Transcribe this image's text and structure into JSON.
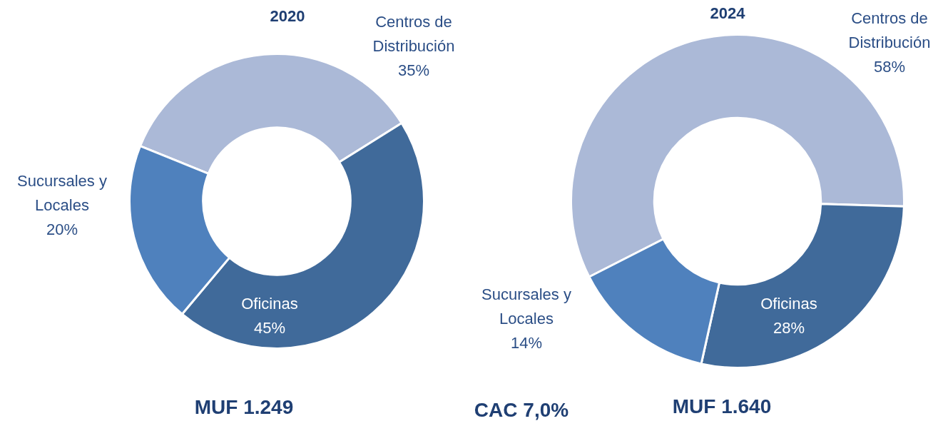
{
  "chart_data": [
    {
      "type": "donut",
      "title": "2020",
      "categories": [
        "Centros de Distribución",
        "Oficinas",
        "Sucursales y Locales"
      ],
      "values": [
        35,
        45,
        20
      ],
      "value_labels": [
        "35%",
        "45%",
        "20%"
      ],
      "colors": [
        "#abb9d7",
        "#406a9a",
        "#4f81bd"
      ],
      "legend": false,
      "annotations": [
        "MUF 1.249",
        "CAC 7,0%"
      ]
    },
    {
      "type": "donut",
      "title": "2024",
      "categories": [
        "Centros de Distribución",
        "Oficinas",
        "Sucursales y Locales"
      ],
      "values": [
        58,
        28,
        14
      ],
      "value_labels": [
        "58%",
        "28%",
        "14%"
      ],
      "colors": [
        "#abb9d7",
        "#406a9a",
        "#4f81bd"
      ],
      "legend": false,
      "annotations": [
        "MUF 1.640"
      ]
    }
  ]
}
